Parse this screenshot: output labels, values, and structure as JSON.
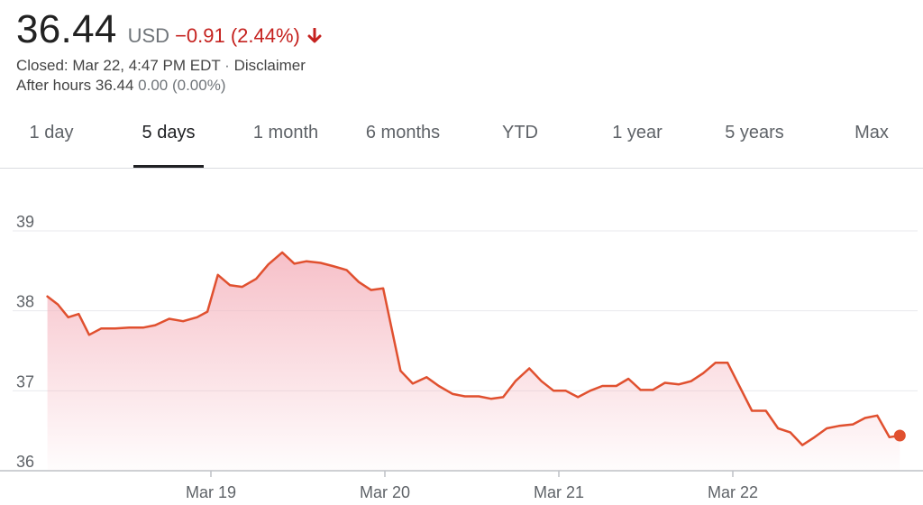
{
  "quote": {
    "price": "36.44",
    "currency": "USD",
    "change": "−0.91 (2.44%)",
    "direction": "down",
    "closed_text": "Closed: Mar 22, 4:47 PM EDT",
    "disclaimer": "Disclaimer",
    "after_hours_label": "After hours 36.44",
    "after_hours_change": "0.00 (0.00%)"
  },
  "tabs": [
    {
      "label": "1 day",
      "active": false
    },
    {
      "label": "5 days",
      "active": true
    },
    {
      "label": "1 month",
      "active": false
    },
    {
      "label": "6 months",
      "active": false
    },
    {
      "label": "YTD",
      "active": false
    },
    {
      "label": "1 year",
      "active": false
    },
    {
      "label": "5 years",
      "active": false
    },
    {
      "label": "Max",
      "active": false
    }
  ],
  "colors": {
    "line": "#e0502f",
    "fill_top": "#f5b5bf",
    "negative": "#c5221f",
    "grid": "#e8eaed",
    "axis": "#bdc1c6"
  },
  "chart_data": {
    "type": "line",
    "title": "",
    "xlabel": "",
    "ylabel": "",
    "ylim": [
      36,
      39
    ],
    "yticks": [
      36,
      37,
      38,
      39
    ],
    "xtick_labels": [
      "Mar 19",
      "Mar 20",
      "Mar 21",
      "Mar 22"
    ],
    "x_range": [
      -0.94,
      4.0
    ],
    "series": [
      {
        "points": [
          [
            -0.94,
            38.18
          ],
          [
            -0.88,
            38.08
          ],
          [
            -0.82,
            37.92
          ],
          [
            -0.76,
            37.96
          ],
          [
            -0.7,
            37.7
          ],
          [
            -0.63,
            37.78
          ],
          [
            -0.55,
            37.78
          ],
          [
            -0.47,
            37.79
          ],
          [
            -0.39,
            37.79
          ],
          [
            -0.32,
            37.82
          ],
          [
            -0.24,
            37.9
          ],
          [
            -0.16,
            37.87
          ],
          [
            -0.08,
            37.92
          ],
          [
            -0.02,
            37.99
          ],
          [
            0.04,
            38.45
          ],
          [
            0.11,
            38.32
          ],
          [
            0.18,
            38.3
          ],
          [
            0.26,
            38.4
          ],
          [
            0.33,
            38.58
          ],
          [
            0.41,
            38.73
          ],
          [
            0.48,
            38.59
          ],
          [
            0.55,
            38.62
          ],
          [
            0.63,
            38.6
          ],
          [
            0.7,
            38.56
          ],
          [
            0.78,
            38.51
          ],
          [
            0.85,
            38.36
          ],
          [
            0.92,
            38.26
          ],
          [
            0.99,
            38.28
          ],
          [
            1.09,
            37.25
          ],
          [
            1.16,
            37.09
          ],
          [
            1.24,
            37.17
          ],
          [
            1.31,
            37.06
          ],
          [
            1.39,
            36.96
          ],
          [
            1.46,
            36.93
          ],
          [
            1.54,
            36.93
          ],
          [
            1.61,
            36.9
          ],
          [
            1.68,
            36.92
          ],
          [
            1.75,
            37.12
          ],
          [
            1.83,
            37.28
          ],
          [
            1.9,
            37.12
          ],
          [
            1.97,
            37.0
          ],
          [
            2.04,
            37.0
          ],
          [
            2.11,
            36.92
          ],
          [
            2.18,
            37.0
          ],
          [
            2.25,
            37.06
          ],
          [
            2.33,
            37.06
          ],
          [
            2.4,
            37.15
          ],
          [
            2.47,
            37.01
          ],
          [
            2.54,
            37.01
          ],
          [
            2.61,
            37.1
          ],
          [
            2.69,
            37.08
          ],
          [
            2.76,
            37.12
          ],
          [
            2.83,
            37.22
          ],
          [
            2.9,
            37.35
          ],
          [
            2.97,
            37.35
          ],
          [
            3.04,
            37.05
          ],
          [
            3.11,
            36.75
          ],
          [
            3.19,
            36.75
          ],
          [
            3.26,
            36.53
          ],
          [
            3.33,
            36.48
          ],
          [
            3.4,
            36.32
          ],
          [
            3.47,
            36.42
          ],
          [
            3.54,
            36.53
          ],
          [
            3.61,
            36.56
          ],
          [
            3.69,
            36.58
          ],
          [
            3.76,
            36.66
          ],
          [
            3.83,
            36.69
          ],
          [
            3.9,
            36.42
          ],
          [
            3.96,
            36.44
          ]
        ]
      }
    ],
    "last_point_marker": true,
    "grid": true
  }
}
